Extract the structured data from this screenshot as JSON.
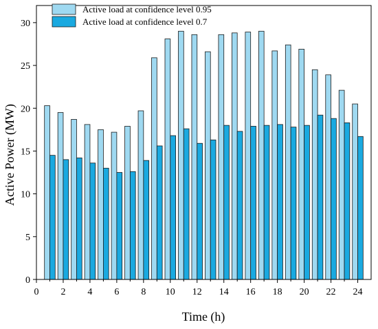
{
  "chart_data": {
    "type": "bar",
    "xlabel": "Time (h)",
    "ylabel": "Active Power (MW)",
    "xlim": [
      0,
      25
    ],
    "ylim": [
      0,
      32
    ],
    "xticks": [
      0,
      2,
      4,
      6,
      8,
      10,
      12,
      14,
      16,
      18,
      20,
      22,
      24
    ],
    "yticks": [
      0,
      5,
      10,
      15,
      20,
      25,
      30
    ],
    "x": [
      1,
      2,
      3,
      4,
      5,
      6,
      7,
      8,
      9,
      10,
      11,
      12,
      13,
      14,
      15,
      16,
      17,
      18,
      19,
      20,
      21,
      22,
      23,
      24
    ],
    "legend_position": "top-left",
    "series": [
      {
        "name": "Active load at confidence level 0.95",
        "color": "#9fd9f1",
        "values": [
          20.3,
          19.5,
          18.7,
          18.1,
          17.5,
          17.2,
          17.9,
          19.7,
          25.9,
          28.1,
          29.0,
          28.6,
          26.6,
          28.6,
          28.8,
          28.9,
          29.0,
          26.7,
          27.4,
          26.9,
          24.5,
          23.9,
          22.1,
          20.5
        ]
      },
      {
        "name": "Active load at confidence level 0.7",
        "color": "#1aa9e0",
        "values": [
          14.5,
          14.0,
          14.2,
          13.6,
          13.0,
          12.5,
          12.6,
          13.9,
          15.6,
          16.8,
          17.6,
          15.9,
          16.3,
          18.0,
          17.3,
          17.9,
          18.0,
          18.1,
          17.8,
          18.0,
          19.2,
          18.8,
          18.3,
          16.7
        ]
      }
    ]
  }
}
